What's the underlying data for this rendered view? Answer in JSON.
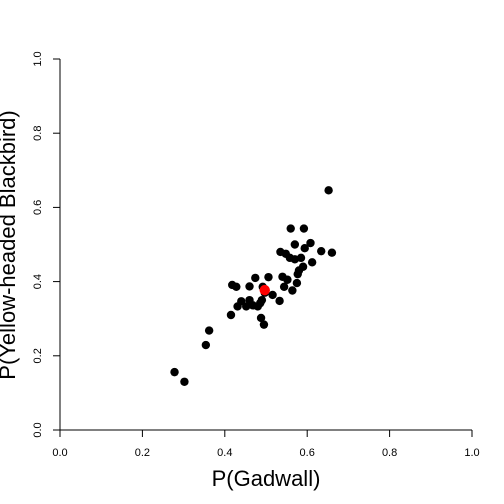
{
  "chart_data": {
    "type": "scatter",
    "title": "",
    "xlabel": "P(Gadwall)",
    "ylabel": "P(Yellow-headed Blackbird)",
    "xlim": [
      0,
      1
    ],
    "ylim": [
      0,
      1
    ],
    "xticks": [
      "0.0",
      "0.2",
      "0.4",
      "0.6",
      "0.8",
      "1.0"
    ],
    "yticks": [
      "0.0",
      "0.2",
      "0.4",
      "0.6",
      "0.8",
      "1.0"
    ],
    "grid": false,
    "legend": "none",
    "series": [
      {
        "color": "#000000",
        "points": [
          [
            0.278,
            0.156
          ],
          [
            0.302,
            0.13
          ],
          [
            0.354,
            0.229
          ],
          [
            0.362,
            0.268
          ],
          [
            0.415,
            0.31
          ],
          [
            0.418,
            0.391
          ],
          [
            0.428,
            0.386
          ],
          [
            0.431,
            0.333
          ],
          [
            0.44,
            0.347
          ],
          [
            0.452,
            0.333
          ],
          [
            0.46,
            0.35
          ],
          [
            0.46,
            0.387
          ],
          [
            0.468,
            0.336
          ],
          [
            0.474,
            0.41
          ],
          [
            0.48,
            0.333
          ],
          [
            0.486,
            0.342
          ],
          [
            0.488,
            0.302
          ],
          [
            0.49,
            0.35
          ],
          [
            0.492,
            0.386
          ],
          [
            0.495,
            0.284
          ],
          [
            0.497,
            0.37
          ],
          [
            0.506,
            0.412
          ],
          [
            0.516,
            0.364
          ],
          [
            0.533,
            0.348
          ],
          [
            0.535,
            0.48
          ],
          [
            0.54,
            0.413
          ],
          [
            0.544,
            0.386
          ],
          [
            0.548,
            0.475
          ],
          [
            0.552,
            0.405
          ],
          [
            0.558,
            0.464
          ],
          [
            0.56,
            0.543
          ],
          [
            0.564,
            0.376
          ],
          [
            0.57,
            0.46
          ],
          [
            0.57,
            0.5
          ],
          [
            0.575,
            0.396
          ],
          [
            0.577,
            0.42
          ],
          [
            0.58,
            0.43
          ],
          [
            0.585,
            0.464
          ],
          [
            0.59,
            0.44
          ],
          [
            0.592,
            0.543
          ],
          [
            0.594,
            0.49
          ],
          [
            0.608,
            0.504
          ],
          [
            0.612,
            0.452
          ],
          [
            0.634,
            0.482
          ],
          [
            0.652,
            0.646
          ],
          [
            0.66,
            0.478
          ]
        ]
      },
      {
        "color": "#ff0000",
        "points": [
          [
            0.497,
            0.377
          ]
        ]
      }
    ]
  }
}
